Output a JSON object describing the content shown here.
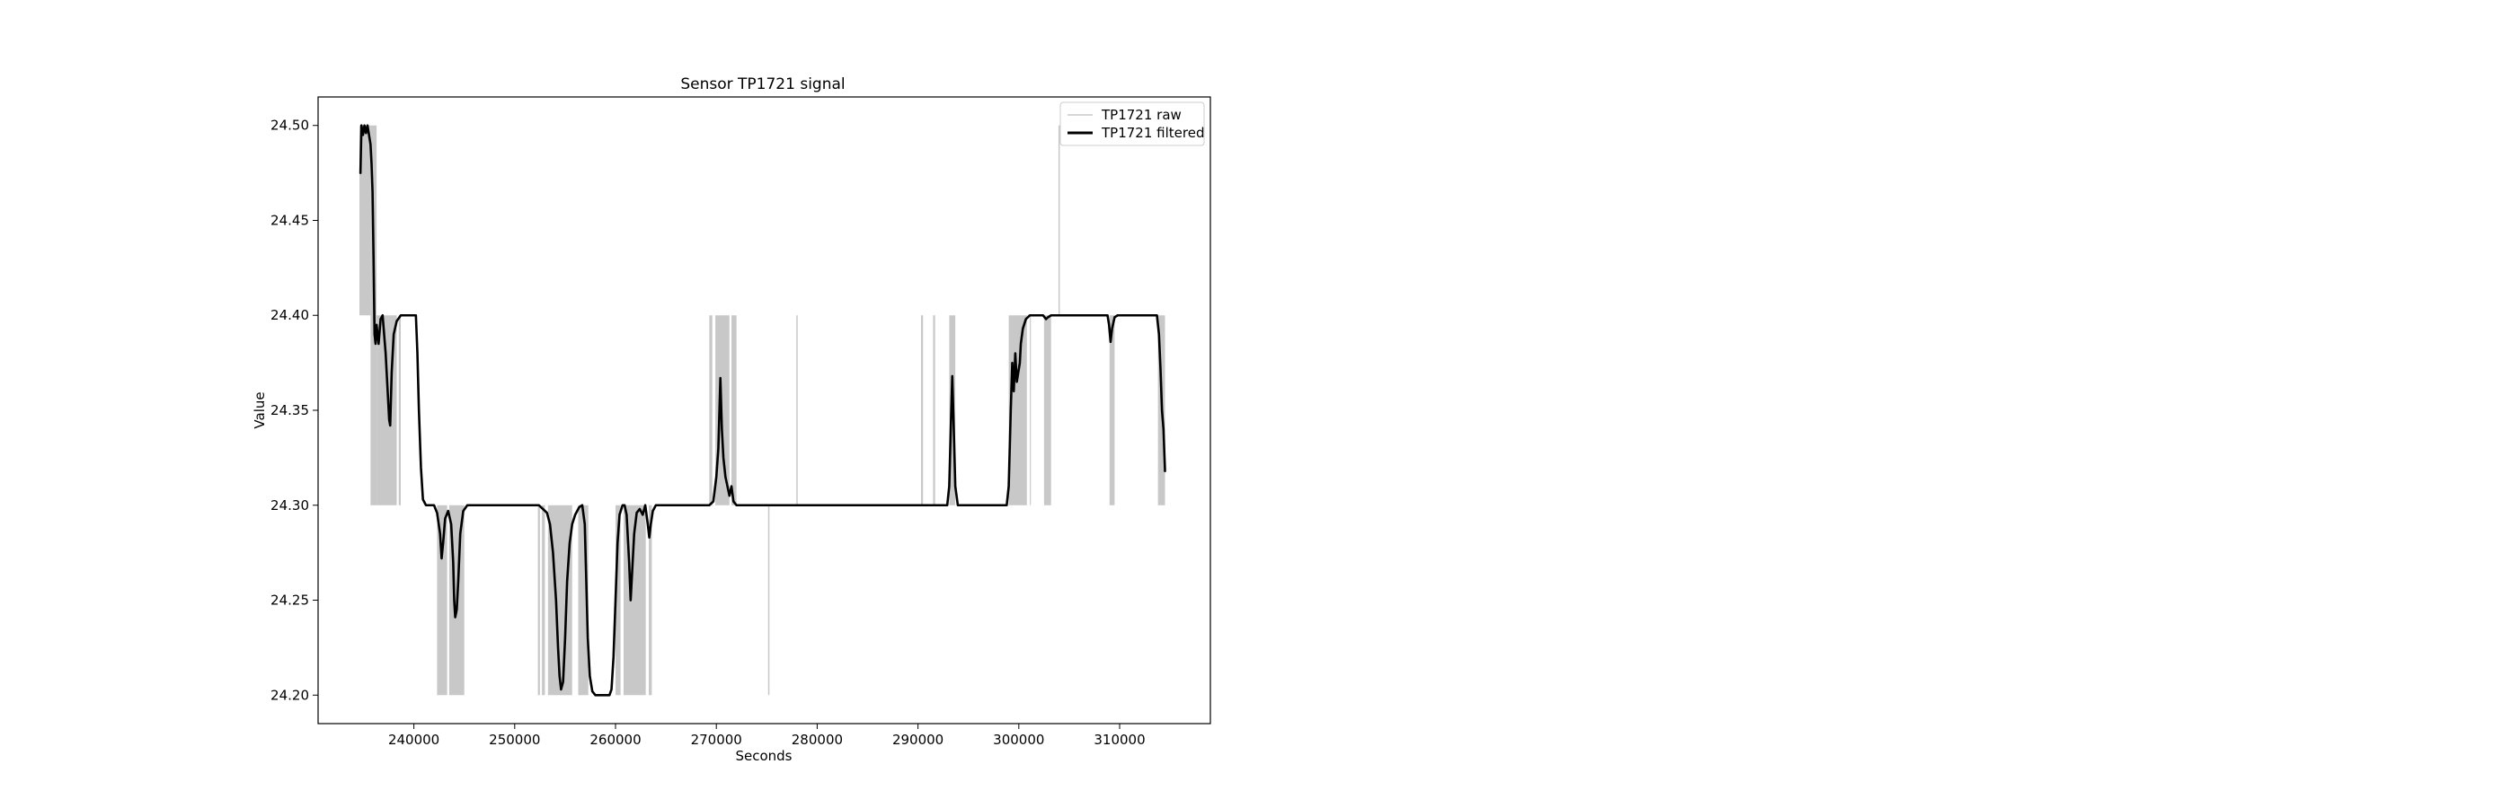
{
  "chart_data": {
    "type": "line",
    "title": "Sensor TP1721 signal",
    "xlabel": "Seconds",
    "ylabel": "Value",
    "xlim": [
      230500,
      319000
    ],
    "ylim": [
      24.185,
      24.515
    ],
    "x_ticks": [
      240000,
      250000,
      260000,
      270000,
      280000,
      290000,
      300000,
      310000
    ],
    "y_ticks": [
      24.2,
      24.25,
      24.3,
      24.35,
      24.4,
      24.45,
      24.5
    ],
    "x_tick_labels": [
      "240000",
      "250000",
      "260000",
      "270000",
      "280000",
      "290000",
      "300000",
      "310000"
    ],
    "y_tick_labels": [
      "24.20",
      "24.25",
      "24.30",
      "24.35",
      "24.40",
      "24.45",
      "24.50"
    ],
    "grid": false,
    "legend_position": "upper right",
    "series": [
      {
        "name": "TP1721 raw",
        "color": "#c8c8c8",
        "style": "thin",
        "quantized": true,
        "oscillation_bands": [
          {
            "x0": 234600,
            "x1": 235700,
            "low": 24.4,
            "high": 24.5
          },
          {
            "x0": 235700,
            "x1": 236300,
            "low": 24.3,
            "high": 24.5
          },
          {
            "x0": 236300,
            "x1": 238300,
            "low": 24.3,
            "high": 24.4
          },
          {
            "x0": 238500,
            "x1": 238700,
            "low": 24.3,
            "high": 24.4
          },
          {
            "x0": 242300,
            "x1": 243300,
            "low": 24.2,
            "high": 24.3
          },
          {
            "x0": 243500,
            "x1": 245000,
            "low": 24.2,
            "high": 24.3
          },
          {
            "x0": 252300,
            "x1": 252500,
            "low": 24.2,
            "high": 24.3
          },
          {
            "x0": 252700,
            "x1": 253000,
            "low": 24.2,
            "high": 24.3
          },
          {
            "x0": 253300,
            "x1": 255700,
            "low": 24.2,
            "high": 24.3
          },
          {
            "x0": 256300,
            "x1": 257300,
            "low": 24.2,
            "high": 24.3
          },
          {
            "x0": 260000,
            "x1": 260500,
            "low": 24.2,
            "high": 24.3
          },
          {
            "x0": 260800,
            "x1": 263000,
            "low": 24.2,
            "high": 24.3
          },
          {
            "x0": 263300,
            "x1": 263600,
            "low": 24.2,
            "high": 24.3
          },
          {
            "x0": 269300,
            "x1": 269600,
            "low": 24.3,
            "high": 24.4
          },
          {
            "x0": 269900,
            "x1": 271300,
            "low": 24.3,
            "high": 24.4
          },
          {
            "x0": 271500,
            "x1": 272000,
            "low": 24.3,
            "high": 24.4
          },
          {
            "x0": 290300,
            "x1": 290500,
            "low": 24.3,
            "high": 24.4
          },
          {
            "x0": 291500,
            "x1": 291700,
            "low": 24.3,
            "high": 24.4
          },
          {
            "x0": 293100,
            "x1": 293700,
            "low": 24.3,
            "high": 24.4
          },
          {
            "x0": 299000,
            "x1": 300800,
            "low": 24.3,
            "high": 24.4
          },
          {
            "x0": 301100,
            "x1": 301200,
            "low": 24.3,
            "high": 24.4
          },
          {
            "x0": 302500,
            "x1": 303200,
            "low": 24.3,
            "high": 24.4
          },
          {
            "x0": 309000,
            "x1": 309500,
            "low": 24.3,
            "high": 24.4
          },
          {
            "x0": 313800,
            "x1": 314500,
            "low": 24.3,
            "high": 24.4
          }
        ],
        "spikes": [
          {
            "x": 275200,
            "from": 24.3,
            "to": 24.2
          },
          {
            "x": 278000,
            "from": 24.3,
            "to": 24.4
          },
          {
            "x": 304000,
            "from": 24.4,
            "to": 24.5
          }
        ]
      },
      {
        "name": "TP1721 filtered",
        "color": "#000000",
        "style": "thick",
        "points": [
          [
            234700,
            24.475
          ],
          [
            234800,
            24.5
          ],
          [
            234950,
            24.495
          ],
          [
            235100,
            24.5
          ],
          [
            235250,
            24.496
          ],
          [
            235400,
            24.5
          ],
          [
            235550,
            24.495
          ],
          [
            235700,
            24.49
          ],
          [
            235800,
            24.48
          ],
          [
            235900,
            24.465
          ],
          [
            236000,
            24.43
          ],
          [
            236100,
            24.39
          ],
          [
            236200,
            24.385
          ],
          [
            236300,
            24.395
          ],
          [
            236500,
            24.385
          ],
          [
            236700,
            24.398
          ],
          [
            236900,
            24.4
          ],
          [
            237050,
            24.39
          ],
          [
            237200,
            24.38
          ],
          [
            237400,
            24.36
          ],
          [
            237550,
            24.345
          ],
          [
            237650,
            24.342
          ],
          [
            237800,
            24.37
          ],
          [
            238000,
            24.39
          ],
          [
            238300,
            24.397
          ],
          [
            238700,
            24.4
          ],
          [
            239500,
            24.4
          ],
          [
            240200,
            24.4
          ],
          [
            240350,
            24.38
          ],
          [
            240500,
            24.35
          ],
          [
            240700,
            24.32
          ],
          [
            240900,
            24.303
          ],
          [
            241200,
            24.3
          ],
          [
            242000,
            24.3
          ],
          [
            242300,
            24.296
          ],
          [
            242600,
            24.285
          ],
          [
            242750,
            24.272
          ],
          [
            242900,
            24.28
          ],
          [
            243100,
            24.293
          ],
          [
            243400,
            24.297
          ],
          [
            243700,
            24.29
          ],
          [
            243900,
            24.27
          ],
          [
            244000,
            24.25
          ],
          [
            244100,
            24.241
          ],
          [
            244250,
            24.245
          ],
          [
            244400,
            24.26
          ],
          [
            244600,
            24.285
          ],
          [
            244900,
            24.297
          ],
          [
            245300,
            24.3
          ],
          [
            252400,
            24.3
          ],
          [
            252800,
            24.298
          ],
          [
            253200,
            24.296
          ],
          [
            253500,
            24.29
          ],
          [
            253800,
            24.275
          ],
          [
            254100,
            24.25
          ],
          [
            254300,
            24.225
          ],
          [
            254450,
            24.21
          ],
          [
            254600,
            24.203
          ],
          [
            254800,
            24.207
          ],
          [
            255000,
            24.23
          ],
          [
            255200,
            24.26
          ],
          [
            255450,
            24.28
          ],
          [
            255700,
            24.29
          ],
          [
            256000,
            24.295
          ],
          [
            256400,
            24.299
          ],
          [
            256700,
            24.3
          ],
          [
            256950,
            24.29
          ],
          [
            257100,
            24.26
          ],
          [
            257250,
            24.23
          ],
          [
            257450,
            24.21
          ],
          [
            257700,
            24.202
          ],
          [
            258000,
            24.2
          ],
          [
            259400,
            24.2
          ],
          [
            259600,
            24.203
          ],
          [
            259800,
            24.22
          ],
          [
            260000,
            24.25
          ],
          [
            260200,
            24.28
          ],
          [
            260400,
            24.295
          ],
          [
            260700,
            24.3
          ],
          [
            260900,
            24.3
          ],
          [
            261100,
            24.295
          ],
          [
            261350,
            24.27
          ],
          [
            261500,
            24.25
          ],
          [
            261650,
            24.265
          ],
          [
            261850,
            24.285
          ],
          [
            262100,
            24.296
          ],
          [
            262400,
            24.298
          ],
          [
            262700,
            24.295
          ],
          [
            262950,
            24.3
          ],
          [
            263200,
            24.29
          ],
          [
            263350,
            24.283
          ],
          [
            263500,
            24.29
          ],
          [
            263700,
            24.297
          ],
          [
            264000,
            24.3
          ],
          [
            269300,
            24.3
          ],
          [
            269700,
            24.302
          ],
          [
            270000,
            24.315
          ],
          [
            270200,
            24.33
          ],
          [
            270400,
            24.367
          ],
          [
            270550,
            24.34
          ],
          [
            270700,
            24.325
          ],
          [
            270900,
            24.315
          ],
          [
            271100,
            24.31
          ],
          [
            271300,
            24.305
          ],
          [
            271500,
            24.31
          ],
          [
            271700,
            24.302
          ],
          [
            272000,
            24.3
          ],
          [
            290200,
            24.3
          ],
          [
            290400,
            24.3
          ],
          [
            291600,
            24.3
          ],
          [
            292900,
            24.3
          ],
          [
            293100,
            24.31
          ],
          [
            293250,
            24.34
          ],
          [
            293400,
            24.368
          ],
          [
            293550,
            24.34
          ],
          [
            293700,
            24.31
          ],
          [
            293950,
            24.3
          ],
          [
            298800,
            24.3
          ],
          [
            299000,
            24.31
          ],
          [
            299200,
            24.35
          ],
          [
            299350,
            24.375
          ],
          [
            299500,
            24.36
          ],
          [
            299650,
            24.38
          ],
          [
            299800,
            24.365
          ],
          [
            299950,
            24.37
          ],
          [
            300100,
            24.375
          ],
          [
            300200,
            24.385
          ],
          [
            300400,
            24.393
          ],
          [
            300700,
            24.398
          ],
          [
            301100,
            24.4
          ],
          [
            302400,
            24.4
          ],
          [
            302700,
            24.398
          ],
          [
            302900,
            24.399
          ],
          [
            303200,
            24.4
          ],
          [
            308800,
            24.4
          ],
          [
            308950,
            24.395
          ],
          [
            309100,
            24.386
          ],
          [
            309250,
            24.393
          ],
          [
            309500,
            24.399
          ],
          [
            309800,
            24.4
          ],
          [
            313700,
            24.4
          ],
          [
            313900,
            24.39
          ],
          [
            314050,
            24.372
          ],
          [
            314200,
            24.35
          ],
          [
            314350,
            24.34
          ],
          [
            314500,
            24.318
          ]
        ]
      }
    ]
  }
}
